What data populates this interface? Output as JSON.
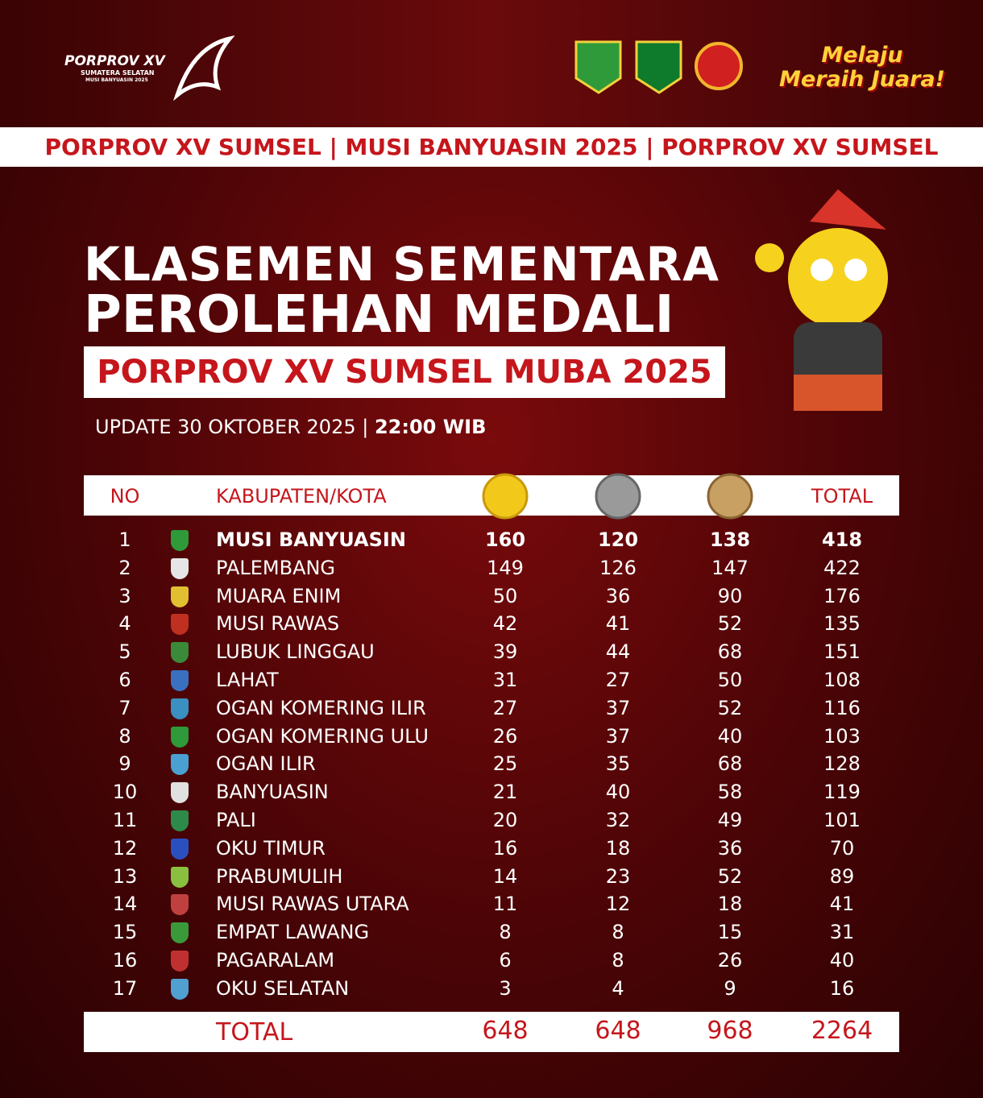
{
  "header": {
    "logo_title": "PORPROV XV",
    "logo_sub1": "SUMATERA SELATAN",
    "logo_sub2": "MUSI BANYUASIN 2025",
    "slogan_line1": "Melaju",
    "slogan_line2": "Meraih Juara!"
  },
  "banner": "PORPROV XV SUMSEL | MUSI BANYUASIN 2025 | PORPROV XV SUMSEL",
  "title": {
    "line1": "KLASEMEN SEMENTARA",
    "line2": "PEROLEHAN MEDALI",
    "subtitle": "PORPROV XV SUMSEL MUBA 2025",
    "update": "UPDATE 30 OKTOBER 2025",
    "time": "22:00 WIB"
  },
  "table": {
    "columns": {
      "no": "NO",
      "name": "KABUPATEN/KOTA",
      "total": "TOTAL"
    },
    "rows": [
      [
        1,
        "MUSI BANYUASIN",
        160,
        120,
        138,
        418
      ],
      [
        2,
        "PALEMBANG",
        149,
        126,
        147,
        422
      ],
      [
        3,
        "MUARA ENIM",
        50,
        36,
        90,
        176
      ],
      [
        4,
        "MUSI RAWAS",
        42,
        41,
        52,
        135
      ],
      [
        5,
        "LUBUK LINGGAU",
        39,
        44,
        68,
        151
      ],
      [
        6,
        "LAHAT",
        31,
        27,
        50,
        108
      ],
      [
        7,
        "OGAN KOMERING ILIR",
        27,
        37,
        52,
        116
      ],
      [
        8,
        "OGAN KOMERING ULU",
        26,
        37,
        40,
        103
      ],
      [
        9,
        "OGAN ILIR",
        25,
        35,
        68,
        128
      ],
      [
        10,
        "BANYUASIN",
        21,
        40,
        58,
        119
      ],
      [
        11,
        "PALI",
        20,
        32,
        49,
        101
      ],
      [
        12,
        "OKU TIMUR",
        16,
        18,
        36,
        70
      ],
      [
        13,
        "PRABUMULIH",
        14,
        23,
        52,
        89
      ],
      [
        14,
        "MUSI RAWAS UTARA",
        11,
        12,
        18,
        41
      ],
      [
        15,
        "EMPAT LAWANG",
        8,
        8,
        15,
        31
      ],
      [
        16,
        "PAGARALAM",
        6,
        8,
        26,
        40
      ],
      [
        17,
        "OKU SELATAN",
        3,
        4,
        9,
        16
      ]
    ],
    "footer": [
      "TOTAL",
      648,
      648,
      968,
      2264
    ]
  }
}
